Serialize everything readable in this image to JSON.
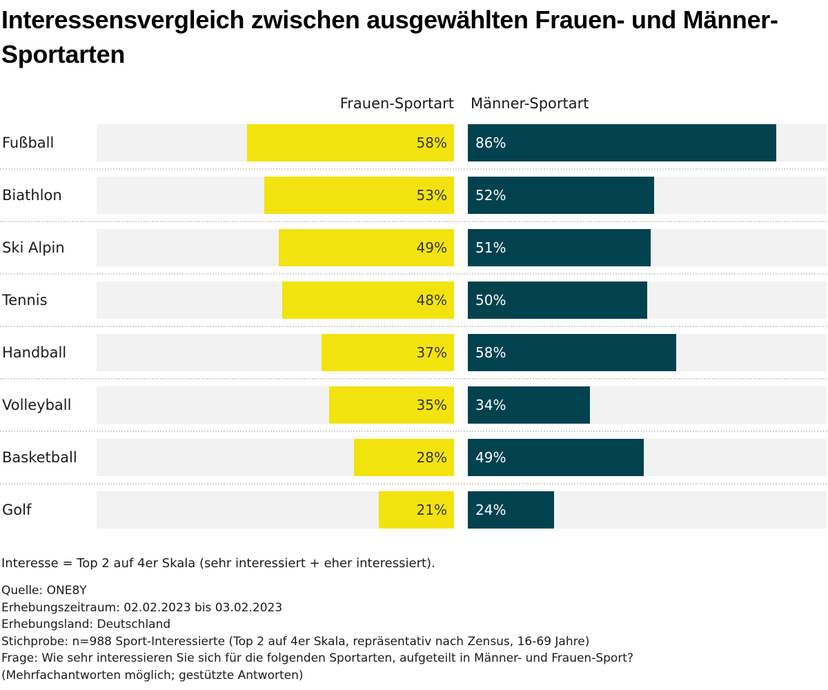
{
  "title": "Interessensvergleich zwischen ausgewählten Frauen- und Männer-Sportarten",
  "legend": {
    "women": "Frauen-Sportart",
    "men": "Männer-Sportart"
  },
  "colors": {
    "women": "#f2e30f",
    "men": "#02424f",
    "track": "#f2f2f2"
  },
  "chart_data": {
    "type": "bar",
    "orientation": "horizontal-diverging",
    "title": "Interessensvergleich zwischen ausgewählten Frauen- und Männer-Sportarten",
    "categories": [
      "Fußball",
      "Biathlon",
      "Ski Alpin",
      "Tennis",
      "Handball",
      "Volleyball",
      "Basketball",
      "Golf"
    ],
    "series": [
      {
        "name": "Frauen-Sportart",
        "values": [
          58,
          53,
          49,
          48,
          37,
          35,
          28,
          21
        ],
        "labels": [
          "58%",
          "53%",
          "49%",
          "48%",
          "37%",
          "35%",
          "28%",
          "21%"
        ]
      },
      {
        "name": "Männer-Sportart",
        "values": [
          86,
          52,
          51,
          50,
          58,
          34,
          49,
          24
        ],
        "labels": [
          "86%",
          "52%",
          "51%",
          "50%",
          "58%",
          "34%",
          "49%",
          "24%"
        ]
      }
    ],
    "xlim": [
      0,
      100
    ],
    "unit": "%",
    "legend_position": "top",
    "grid": false
  },
  "footer": {
    "note": "Interesse = Top 2 auf 4er Skala (sehr interessiert + eher interessiert).",
    "source": "Quelle: ONE8Y",
    "period": "Erhebungszeitraum: 02.02.2023 bis 03.02.2023",
    "country": "Erhebungsland: Deutschland",
    "sample": "Stichprobe: n=988 Sport-Interessierte (Top 2 auf 4er Skala, repräsentativ nach Zensus, 16-69 Jahre)",
    "question": "Frage: Wie sehr interessieren Sie sich für die folgenden Sportarten, aufgeteilt in Männer- und Frauen-Sport?",
    "answers": "(Mehrfachantworten möglich; gestützte Antworten)"
  }
}
